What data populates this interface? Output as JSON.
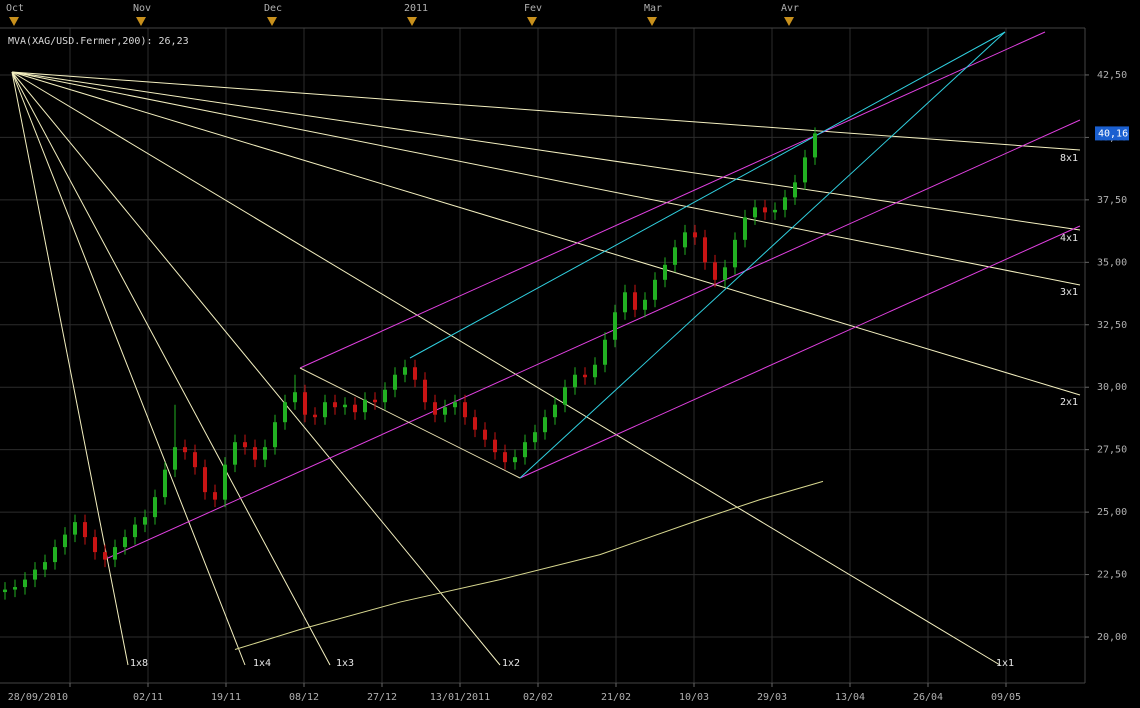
{
  "chart_data": {
    "type": "candlestick",
    "up_color": "#22b022",
    "down_color": "#c81414",
    "xlim": [
      -0.5,
      108
    ],
    "ylim": [
      18.16,
      44.86
    ],
    "x": [
      0,
      1,
      2,
      3,
      4,
      5,
      6,
      7,
      8,
      9,
      10,
      11,
      12,
      13,
      14,
      15,
      16,
      17,
      18,
      19,
      20,
      21,
      22,
      23,
      24,
      25,
      26,
      27,
      28,
      29,
      30,
      31,
      32,
      33,
      34,
      35,
      36,
      37,
      38,
      39,
      40,
      41,
      42,
      43,
      44,
      45,
      46,
      47,
      48,
      49,
      50,
      51,
      52,
      53,
      54,
      55,
      56,
      57,
      58,
      59,
      60,
      61,
      62,
      63,
      64,
      65,
      66,
      67,
      68,
      69,
      70,
      71,
      72,
      73,
      74,
      75,
      76,
      77,
      78,
      79,
      80,
      81
    ],
    "open": [
      21.8,
      21.9,
      22.0,
      22.3,
      22.7,
      23.0,
      23.6,
      24.1,
      24.6,
      24.0,
      23.4,
      23.1,
      23.6,
      24.0,
      24.5,
      24.8,
      25.6,
      26.7,
      27.6,
      27.4,
      26.8,
      25.8,
      25.5,
      26.9,
      27.8,
      27.6,
      27.1,
      27.6,
      28.6,
      29.4,
      29.8,
      28.9,
      28.8,
      29.4,
      29.2,
      29.3,
      29.0,
      29.5,
      29.4,
      29.9,
      30.5,
      30.8,
      30.3,
      29.4,
      28.9,
      29.2,
      29.4,
      28.8,
      28.3,
      27.9,
      27.4,
      27.0,
      27.2,
      27.8,
      28.2,
      28.8,
      29.3,
      30.0,
      30.5,
      30.4,
      30.9,
      31.9,
      33.0,
      33.8,
      33.1,
      33.5,
      34.3,
      34.9,
      35.6,
      36.2,
      36.0,
      35.0,
      34.3,
      34.8,
      35.9,
      36.8,
      37.2,
      37.0,
      37.1,
      37.6,
      38.2,
      39.2
    ],
    "high": [
      22.2,
      22.3,
      22.6,
      23.0,
      23.3,
      23.9,
      24.4,
      24.9,
      24.9,
      24.3,
      23.7,
      23.9,
      24.3,
      24.8,
      25.1,
      25.9,
      27.0,
      29.3,
      27.9,
      27.7,
      27.1,
      26.1,
      27.2,
      28.1,
      28.1,
      27.9,
      27.9,
      28.9,
      29.7,
      30.5,
      30.1,
      29.2,
      29.7,
      29.7,
      29.6,
      29.6,
      29.8,
      29.8,
      30.2,
      30.8,
      31.1,
      31.1,
      30.6,
      29.7,
      29.5,
      29.7,
      29.7,
      29.1,
      28.6,
      28.2,
      27.7,
      27.5,
      28.1,
      28.5,
      29.1,
      29.6,
      30.3,
      30.8,
      30.8,
      31.2,
      32.2,
      33.3,
      34.1,
      34.1,
      33.8,
      34.6,
      35.2,
      35.9,
      36.5,
      36.5,
      36.3,
      35.3,
      35.1,
      36.2,
      37.1,
      37.5,
      37.5,
      37.4,
      37.9,
      38.5,
      39.5,
      40.4
    ],
    "low": [
      21.5,
      21.6,
      21.7,
      22.0,
      22.4,
      22.7,
      23.3,
      23.8,
      23.7,
      23.1,
      22.8,
      22.8,
      23.3,
      23.7,
      24.2,
      24.5,
      25.3,
      26.4,
      27.1,
      26.5,
      25.5,
      25.2,
      25.2,
      26.6,
      27.3,
      26.8,
      26.8,
      27.3,
      28.3,
      29.1,
      28.6,
      28.5,
      28.5,
      28.9,
      28.9,
      28.7,
      28.7,
      29.1,
      29.1,
      29.6,
      30.2,
      30.0,
      29.1,
      28.6,
      28.6,
      28.9,
      28.5,
      28.0,
      27.6,
      27.1,
      26.7,
      26.7,
      26.9,
      27.5,
      27.9,
      28.5,
      29.0,
      29.7,
      30.1,
      30.1,
      30.6,
      31.6,
      32.7,
      32.8,
      32.8,
      33.2,
      34.0,
      34.6,
      35.3,
      35.7,
      34.7,
      34.0,
      34.0,
      34.5,
      35.6,
      36.5,
      36.7,
      36.7,
      36.8,
      37.3,
      37.9,
      38.9
    ],
    "close": [
      21.9,
      22.0,
      22.3,
      22.7,
      23.0,
      23.6,
      24.1,
      24.6,
      24.0,
      23.4,
      23.1,
      23.6,
      24.0,
      24.5,
      24.8,
      25.6,
      26.7,
      27.6,
      27.4,
      26.8,
      25.8,
      25.5,
      26.9,
      27.8,
      27.6,
      27.1,
      27.6,
      28.6,
      29.4,
      29.8,
      28.9,
      28.8,
      29.4,
      29.2,
      29.3,
      29.0,
      29.5,
      29.4,
      29.9,
      30.5,
      30.8,
      30.3,
      29.4,
      28.9,
      29.2,
      29.4,
      28.8,
      28.3,
      27.9,
      27.4,
      27.0,
      27.2,
      27.8,
      28.2,
      28.8,
      29.3,
      30.0,
      30.5,
      30.4,
      30.9,
      31.9,
      33.0,
      33.8,
      33.1,
      33.5,
      34.3,
      34.9,
      35.6,
      36.2,
      36.0,
      35.0,
      34.3,
      34.8,
      35.9,
      36.8,
      37.2,
      37.0,
      37.1,
      37.6,
      38.2,
      39.2,
      40.16
    ],
    "ma": {
      "name": "MVA(XAG/USD.Fermer,200): 26,23",
      "color": "#d8d890",
      "x": [
        23,
        29.5,
        39.5,
        49.5,
        59.5,
        69.5,
        75.5,
        81.8
      ],
      "values": [
        19.5,
        20.3,
        21.4,
        22.3,
        23.3,
        24.7,
        25.5,
        26.23
      ]
    },
    "last_price": {
      "value": 40.16,
      "label": "40,16"
    },
    "grid": true,
    "yticks": [
      {
        "value": 20,
        "label": "20,00"
      },
      {
        "value": 22.5,
        "label": "22,50"
      },
      {
        "value": 25,
        "label": "25,00"
      },
      {
        "value": 27.5,
        "label": "27,50"
      },
      {
        "value": 30,
        "label": "30,00"
      },
      {
        "value": 32.5,
        "label": "32,50"
      },
      {
        "value": 35,
        "label": "35,00"
      },
      {
        "value": 37.5,
        "label": "37,50"
      },
      {
        "value": 40,
        "label": "40,00"
      },
      {
        "value": 42.5,
        "label": "42,50"
      }
    ],
    "xticks": [
      {
        "value": 6.5,
        "label": "28/09/2010"
      },
      {
        "value": 14.3,
        "label": "02/11"
      },
      {
        "value": 22.1,
        "label": "19/11"
      },
      {
        "value": 29.9,
        "label": "08/12"
      },
      {
        "value": 37.7,
        "label": "27/12"
      },
      {
        "value": 45.5,
        "label": "13/01/2011"
      },
      {
        "value": 53.3,
        "label": "02/02"
      },
      {
        "value": 61.1,
        "label": "21/02"
      },
      {
        "value": 68.9,
        "label": "10/03"
      },
      {
        "value": 76.7,
        "label": "29/03"
      },
      {
        "value": 84.5,
        "label": "13/04"
      },
      {
        "value": 92.3,
        "label": "26/04"
      },
      {
        "value": 100.1,
        "label": "09/05"
      }
    ],
    "top_xticks": [
      {
        "value": 0.9,
        "label": "Oct"
      },
      {
        "value": 13.6,
        "label": "Nov"
      },
      {
        "value": 26.7,
        "label": "Dec"
      },
      {
        "value": 40.7,
        "label": "2011"
      },
      {
        "value": 52.7,
        "label": "Fev"
      },
      {
        "value": 64.7,
        "label": "Mar"
      },
      {
        "value": 78.4,
        "label": "Avr"
      }
    ],
    "fan_labels": [
      "8x1",
      "4x1",
      "3x1",
      "2x1",
      "1x1",
      "1x2",
      "1x3",
      "1x4",
      "1x8"
    ]
  }
}
